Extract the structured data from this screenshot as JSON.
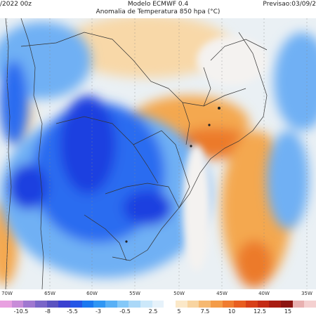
{
  "header": {
    "left": "/2022 00z",
    "center": "Modelo ECMWF 0.4",
    "subtitle": "Anomalia de Temperatura 850 hpa (°C)",
    "right": "Previsao:03/09/2"
  },
  "lon_axis": [
    "70W",
    "65W",
    "60W",
    "55W",
    "50W",
    "45W",
    "40W",
    "35W"
  ],
  "colorbar": {
    "labels": [
      "-10.5",
      "-8",
      "-5.5",
      "-3",
      "-0.5",
      "2.5",
      "5",
      "7.5",
      "10",
      "12.5",
      "15"
    ],
    "colors": [
      "#e8a0e0",
      "#c88cd8",
      "#a078d0",
      "#7a66c8",
      "#5a52c0",
      "#3a40d0",
      "#2456e6",
      "#1a78f0",
      "#2f96f4",
      "#58b0f6",
      "#84c8f8",
      "#aad8f8",
      "#cce8fa",
      "#e6f2fa",
      "#ffffff",
      "#fbe8c8",
      "#f8d4a0",
      "#f6b870",
      "#f49c48",
      "#f07c30",
      "#e85e20",
      "#d84018",
      "#c42a14",
      "#a81c12",
      "#8c1410",
      "#e8b0b0",
      "#f4d0d0"
    ]
  },
  "map": {
    "colors": {
      "deep_blue": "#1a40e0",
      "blue": "#2a6cf0",
      "light_blue": "#70b0f4",
      "pale_blue": "#b8daf8",
      "white": "#f4f2f0",
      "pale_orange": "#f8d8a8",
      "orange": "#f4a850",
      "deep_orange": "#ec7a2a",
      "red": "#e04a20"
    }
  }
}
